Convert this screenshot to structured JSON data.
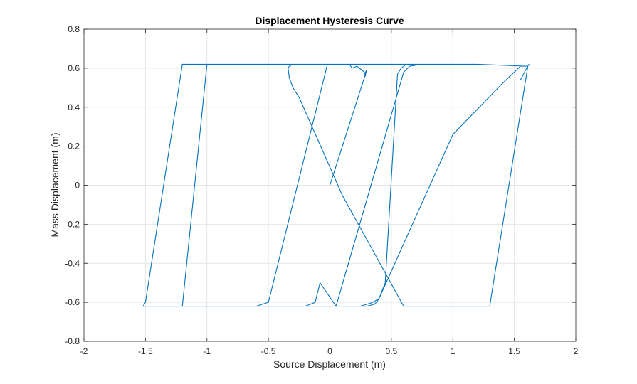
{
  "chart_data": {
    "type": "line",
    "title": "Displacement Hysteresis Curve",
    "xlabel": "Source Displacement (m)",
    "ylabel": "Mass Displacement (m)",
    "xlim": [
      -2,
      2
    ],
    "ylim": [
      -0.8,
      0.8
    ],
    "x_ticks": [
      -2,
      -1.5,
      -1,
      -0.5,
      0,
      0.5,
      1,
      1.5,
      2
    ],
    "x_tick_labels": [
      "-2",
      "-1.5",
      "-1",
      "-0.5",
      "0",
      "0.5",
      "1",
      "1.5",
      "2"
    ],
    "y_ticks": [
      -0.8,
      -0.6,
      -0.4,
      -0.2,
      0,
      0.2,
      0.4,
      0.6,
      0.8
    ],
    "y_tick_labels": [
      "-0.8",
      "-0.6",
      "-0.4",
      "-0.2",
      "0",
      "0.2",
      "0.4",
      "0.6",
      "0.8"
    ],
    "grid": true,
    "line_color": "#0072BD",
    "axis_color": "#262626",
    "grid_color": "#e6e6e6",
    "series": [
      {
        "x": [
          0,
          0.3,
          0.29,
          0.29,
          0.28,
          0.22,
          0.18,
          0.16,
          -0.02,
          -0.5,
          -0.55,
          -0.6,
          -0.7,
          -0.84,
          -0.55,
          -0.2,
          0.25,
          0.3,
          0.35,
          0.4,
          0.45,
          0.55,
          0.58,
          0.62,
          0.7,
          0.76,
          0.55,
          0.45,
          0.3,
          0.0,
          -0.6,
          -1.0,
          -1.2,
          -0.85,
          -0.5,
          -0.2,
          -0.12,
          -0.08,
          0.05,
          0.6,
          0.65,
          0.75,
          1.12,
          0.9,
          0.6,
          0.3,
          0.1,
          -0.2,
          -0.7,
          -1.0,
          -1.2,
          -1.5,
          -1.52,
          -1.48,
          -1.2,
          -0.6,
          0.2,
          0.3,
          0.36,
          0.38,
          0.4,
          1.0,
          1.4,
          1.5,
          1.55,
          1.61,
          1.6,
          1.2,
          0.8,
          0.5,
          0.4,
          0.1,
          -0.3,
          -0.33,
          -0.34,
          -0.33,
          -0.3,
          -0.25,
          0.1,
          0.6,
          1.0,
          1.3,
          1.61,
          1.62,
          1.6,
          1.55
        ],
        "y": [
          0,
          0.59,
          0.58,
          0.56,
          0.58,
          0.61,
          0.6,
          0.62,
          0.62,
          -0.6,
          -0.61,
          -0.62,
          -0.62,
          -0.62,
          -0.62,
          -0.62,
          -0.62,
          -0.61,
          -0.6,
          -0.58,
          -0.5,
          0.57,
          0.6,
          0.62,
          0.62,
          0.62,
          0.62,
          0.62,
          0.62,
          0.62,
          0.62,
          0.62,
          -0.62,
          -0.62,
          -0.62,
          -0.62,
          -0.6,
          -0.5,
          -0.62,
          0.58,
          0.61,
          0.62,
          0.62,
          0.62,
          0.62,
          0.62,
          0.62,
          0.62,
          0.62,
          0.62,
          0.62,
          -0.6,
          -0.62,
          -0.62,
          -0.62,
          -0.62,
          -0.62,
          -0.62,
          -0.61,
          -0.6,
          -0.58,
          0.26,
          0.52,
          0.58,
          0.61,
          0.61,
          0.61,
          0.62,
          0.62,
          0.62,
          0.62,
          0.62,
          0.62,
          0.61,
          0.6,
          0.55,
          0.5,
          0.45,
          -0.05,
          -0.62,
          -0.62,
          -0.62,
          0.61,
          0.62,
          0.6,
          0.54
        ]
      }
    ]
  }
}
